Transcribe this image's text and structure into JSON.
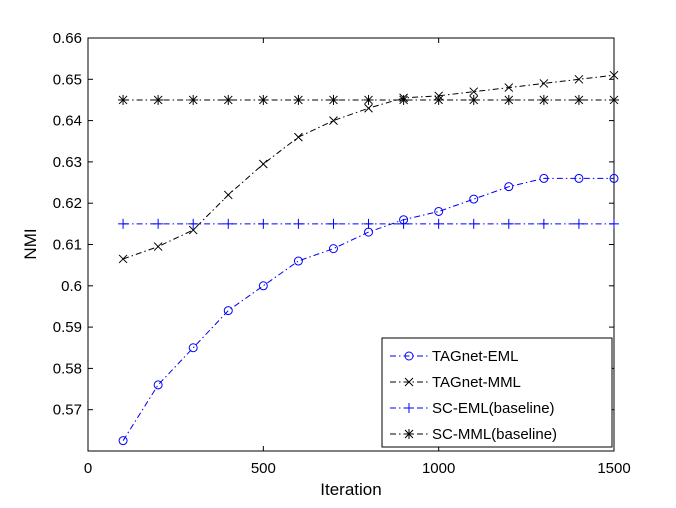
{
  "chart_data": {
    "type": "line",
    "title": "",
    "xlabel": "Iteration",
    "ylabel": "NMI",
    "xlim": [
      0,
      1500
    ],
    "ylim": [
      0.56,
      0.66
    ],
    "xticks": [
      0,
      500,
      1000,
      1500
    ],
    "xtick_labels": [
      "0",
      "500",
      "1000",
      "1500"
    ],
    "yticks": [
      0.57,
      0.58,
      0.59,
      0.6,
      0.61,
      0.62,
      0.63,
      0.64,
      0.65,
      0.66
    ],
    "ytick_labels": [
      "0.57",
      "0.58",
      "0.59",
      "0.6",
      "0.61",
      "0.62",
      "0.63",
      "0.64",
      "0.65",
      "0.66"
    ],
    "grid": false,
    "legend_position": "bottom-right",
    "x": [
      100,
      200,
      300,
      400,
      500,
      600,
      700,
      800,
      900,
      1000,
      1100,
      1200,
      1300,
      1400,
      1500
    ],
    "series": [
      {
        "name": "TAGnet-EML",
        "color": "#0000ff",
        "marker": "circle",
        "values": [
          0.5625,
          0.576,
          0.585,
          0.594,
          0.6,
          0.606,
          0.609,
          0.613,
          0.616,
          0.618,
          0.621,
          0.624,
          0.626,
          0.626,
          0.626
        ]
      },
      {
        "name": "TAGnet-MML",
        "color": "#000000",
        "marker": "x",
        "values": [
          0.6065,
          0.6095,
          0.6135,
          0.622,
          0.6295,
          0.636,
          0.64,
          0.643,
          0.6455,
          0.646,
          0.647,
          0.648,
          0.649,
          0.65,
          0.651
        ]
      },
      {
        "name": "SC-EML(baseline)",
        "color": "#0000ff",
        "marker": "plus",
        "values": [
          0.615,
          0.615,
          0.615,
          0.615,
          0.615,
          0.615,
          0.615,
          0.615,
          0.615,
          0.615,
          0.615,
          0.615,
          0.615,
          0.615,
          0.615
        ]
      },
      {
        "name": "SC-MML(baseline)",
        "color": "#000000",
        "marker": "star",
        "values": [
          0.645,
          0.645,
          0.645,
          0.645,
          0.645,
          0.645,
          0.645,
          0.645,
          0.645,
          0.645,
          0.645,
          0.645,
          0.645,
          0.645,
          0.645
        ]
      }
    ]
  }
}
